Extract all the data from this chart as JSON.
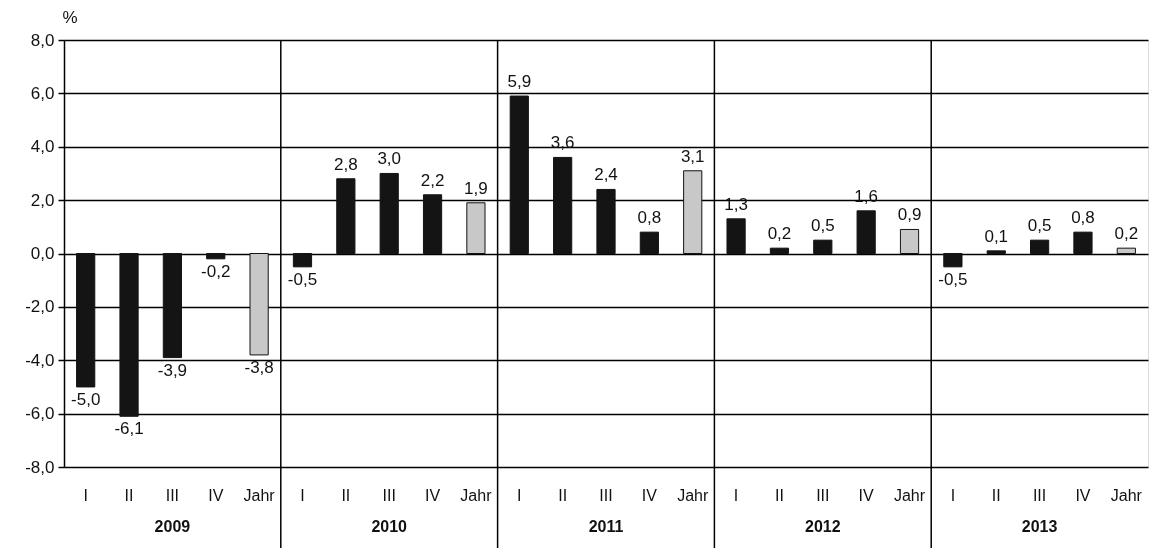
{
  "chart_data": {
    "type": "bar",
    "ylabel": "%",
    "categories": [
      "I",
      "II",
      "III",
      "IV",
      "Jahr",
      "I",
      "II",
      "III",
      "IV",
      "Jahr",
      "I",
      "II",
      "III",
      "IV",
      "Jahr",
      "I",
      "II",
      "III",
      "IV",
      "Jahr",
      "I",
      "II",
      "III",
      "IV",
      "Jahr"
    ],
    "values": [
      -5.0,
      -6.1,
      -3.9,
      -0.2,
      -3.8,
      -0.5,
      2.8,
      3.0,
      2.2,
      1.9,
      5.9,
      3.6,
      2.4,
      0.8,
      3.1,
      1.3,
      0.2,
      0.5,
      1.6,
      0.9,
      -0.5,
      0.1,
      0.5,
      0.8,
      0.2
    ],
    "value_labels": [
      "-5,0",
      "-6,1",
      "-3,9",
      "-0,2",
      "-3,8",
      "-0,5",
      "2,8",
      "3,0",
      "2,2",
      "1,9",
      "5,9",
      "3,6",
      "2,4",
      "0,8",
      "3,1",
      "1,3",
      "0,2",
      "0,5",
      "1,6",
      "0,9",
      "-0,5",
      "0,1",
      "0,5",
      "0,8",
      "0,2"
    ],
    "colors": [
      "#141414",
      "#141414",
      "#141414",
      "#141414",
      "#c8c8c8",
      "#141414",
      "#141414",
      "#141414",
      "#141414",
      "#c8c8c8",
      "#141414",
      "#141414",
      "#141414",
      "#141414",
      "#c8c8c8",
      "#141414",
      "#141414",
      "#141414",
      "#141414",
      "#c8c8c8",
      "#141414",
      "#141414",
      "#141414",
      "#141414",
      "#c8c8c8"
    ],
    "ylim": [
      -8,
      8
    ],
    "yticks": [
      {
        "value": -8,
        "label": "-8,0"
      },
      {
        "value": -6,
        "label": "-6,0"
      },
      {
        "value": -4,
        "label": "-4,0"
      },
      {
        "value": -2,
        "label": "-2,0"
      },
      {
        "value": 0,
        "label": "0,0"
      },
      {
        "value": 2,
        "label": "2,0"
      },
      {
        "value": 4,
        "label": "4,0"
      },
      {
        "value": 6,
        "label": "6,0"
      },
      {
        "value": 8,
        "label": "8,0"
      }
    ],
    "grid": "y",
    "annotations": [
      "2009",
      "2010",
      "2011",
      "2012",
      "2013"
    ]
  }
}
